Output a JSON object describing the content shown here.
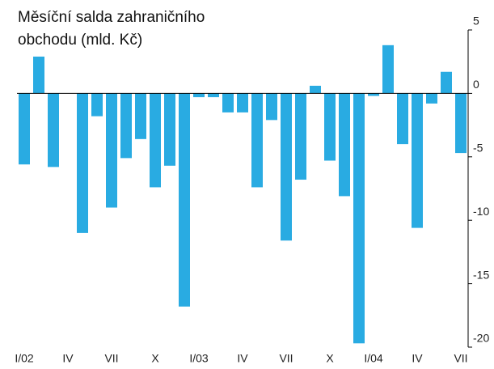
{
  "chart_data": {
    "type": "bar",
    "title": "Měsíční salda zahraničního obchodu (mld. Kč)",
    "categories": [
      "I/02",
      null,
      null,
      "IV",
      null,
      null,
      "VII",
      null,
      null,
      "X",
      null,
      null,
      "I/03",
      null,
      null,
      "IV",
      null,
      null,
      "VII",
      null,
      null,
      "X",
      null,
      null,
      "I/04",
      null,
      null,
      "IV",
      null,
      null,
      "VII"
    ],
    "values": [
      -5.6,
      2.9,
      -5.8,
      0,
      -11.0,
      -1.8,
      -9.0,
      -5.1,
      -3.6,
      -7.4,
      -5.7,
      -16.8,
      -0.3,
      -0.3,
      -1.5,
      -1.5,
      -7.4,
      -2.1,
      -11.6,
      -6.8,
      0.6,
      -5.3,
      -8.1,
      -19.7,
      -0.2,
      3.8,
      -4.0,
      -10.6,
      -0.8,
      1.7,
      -4.7
    ],
    "color": "#29abe2",
    "ylim": [
      -20,
      5
    ],
    "yticks": [
      -20,
      -15,
      -10,
      -5,
      0,
      5
    ],
    "grid": false
  }
}
